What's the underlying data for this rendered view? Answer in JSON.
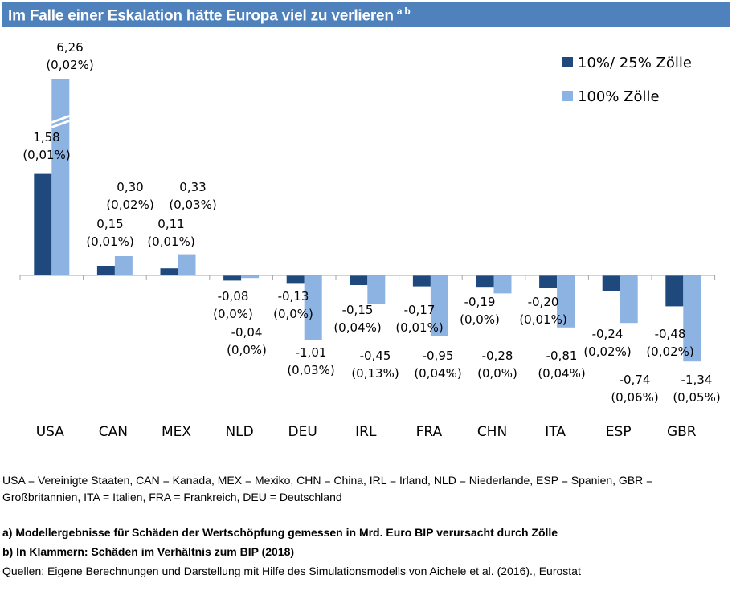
{
  "header": {
    "title": "Im Falle einer Eskalation hätte Europa viel zu verlieren",
    "title_superscript": "a b"
  },
  "colors": {
    "title_bar": "#4f81bd",
    "series_1": "#1f497d",
    "series_2": "#8db3e2",
    "axis": "#a6a6a6"
  },
  "chart_data": {
    "type": "bar",
    "title": "Im Falle einer Eskalation hätte Europa viel zu verlieren",
    "xlabel": "",
    "ylabel": "",
    "grid": false,
    "legend_position": "top-right",
    "categories": [
      "USA",
      "CAN",
      "MEX",
      "NLD",
      "DEU",
      "IRL",
      "FRA",
      "CHN",
      "ITA",
      "ESP",
      "GBR"
    ],
    "series": [
      {
        "name": "10%/ 25% Zölle",
        "values": [
          1.58,
          0.15,
          0.11,
          -0.08,
          -0.13,
          -0.15,
          -0.17,
          -0.19,
          -0.2,
          -0.24,
          -0.48
        ],
        "value_labels": [
          "1,58",
          "0,15",
          "0,11",
          "-0,08",
          "-0,13",
          "-0,15",
          "-0,17",
          "-0,19",
          "-0,20",
          "-0,24",
          "-0,48"
        ],
        "share_labels": [
          "(0,01%)",
          "(0,01%)",
          "(0,01%)",
          "(0,0%)",
          "(0,0%)",
          "(0,04%)",
          "(0,01%)",
          "(0,0%)",
          "(0,01%)",
          "(0,02%)",
          "(0,02%)"
        ]
      },
      {
        "name": "100% Zölle",
        "values": [
          6.26,
          0.3,
          0.33,
          -0.04,
          -1.01,
          -0.45,
          -0.95,
          -0.28,
          -0.81,
          -0.74,
          -1.34
        ],
        "value_labels": [
          "6,26",
          "0,30",
          "0,33",
          "-0,04",
          "-1,01",
          "-0,45",
          "-0,95",
          "-0,28",
          "-0,81",
          "-0,74",
          "-1,34"
        ],
        "share_labels": [
          "(0,02%)",
          "(0,02%)",
          "(0,03%)",
          "(0,0%)",
          "(0,03%)",
          "(0,13%)",
          "(0,04%)",
          "(0,0%)",
          "(0,04%)",
          "(0,06%)",
          "(0,05%)"
        ]
      }
    ],
    "axis_break": {
      "series": "100% Zölle",
      "category": "USA",
      "shown_max": 3.0
    },
    "ylim": [
      -1.34,
      3.0
    ]
  },
  "footnotes": {
    "abbreviations_line1": "USA = Vereinigte Staaten, CAN = Kanada, MEX = Mexiko, CHN = China, IRL = Irland, NLD = Niederlande, ESP = Spanien, GBR =",
    "abbreviations_line2": "Großbritannien, ITA = Italien, FRA = Frankreich, DEU = Deutschland",
    "note_a": "a) Modellergebnisse für Schäden der Wertschöpfung gemessen in Mrd. Euro BIP verursacht durch Zölle",
    "note_b": "b) In Klammern: Schäden im Verhältnis zum BIP (2018)",
    "sources": "Quellen: Eigene Berechnungen und Darstellung mit Hilfe des Simulationsmodells von Aichele et al. (2016)., Eurostat"
  }
}
